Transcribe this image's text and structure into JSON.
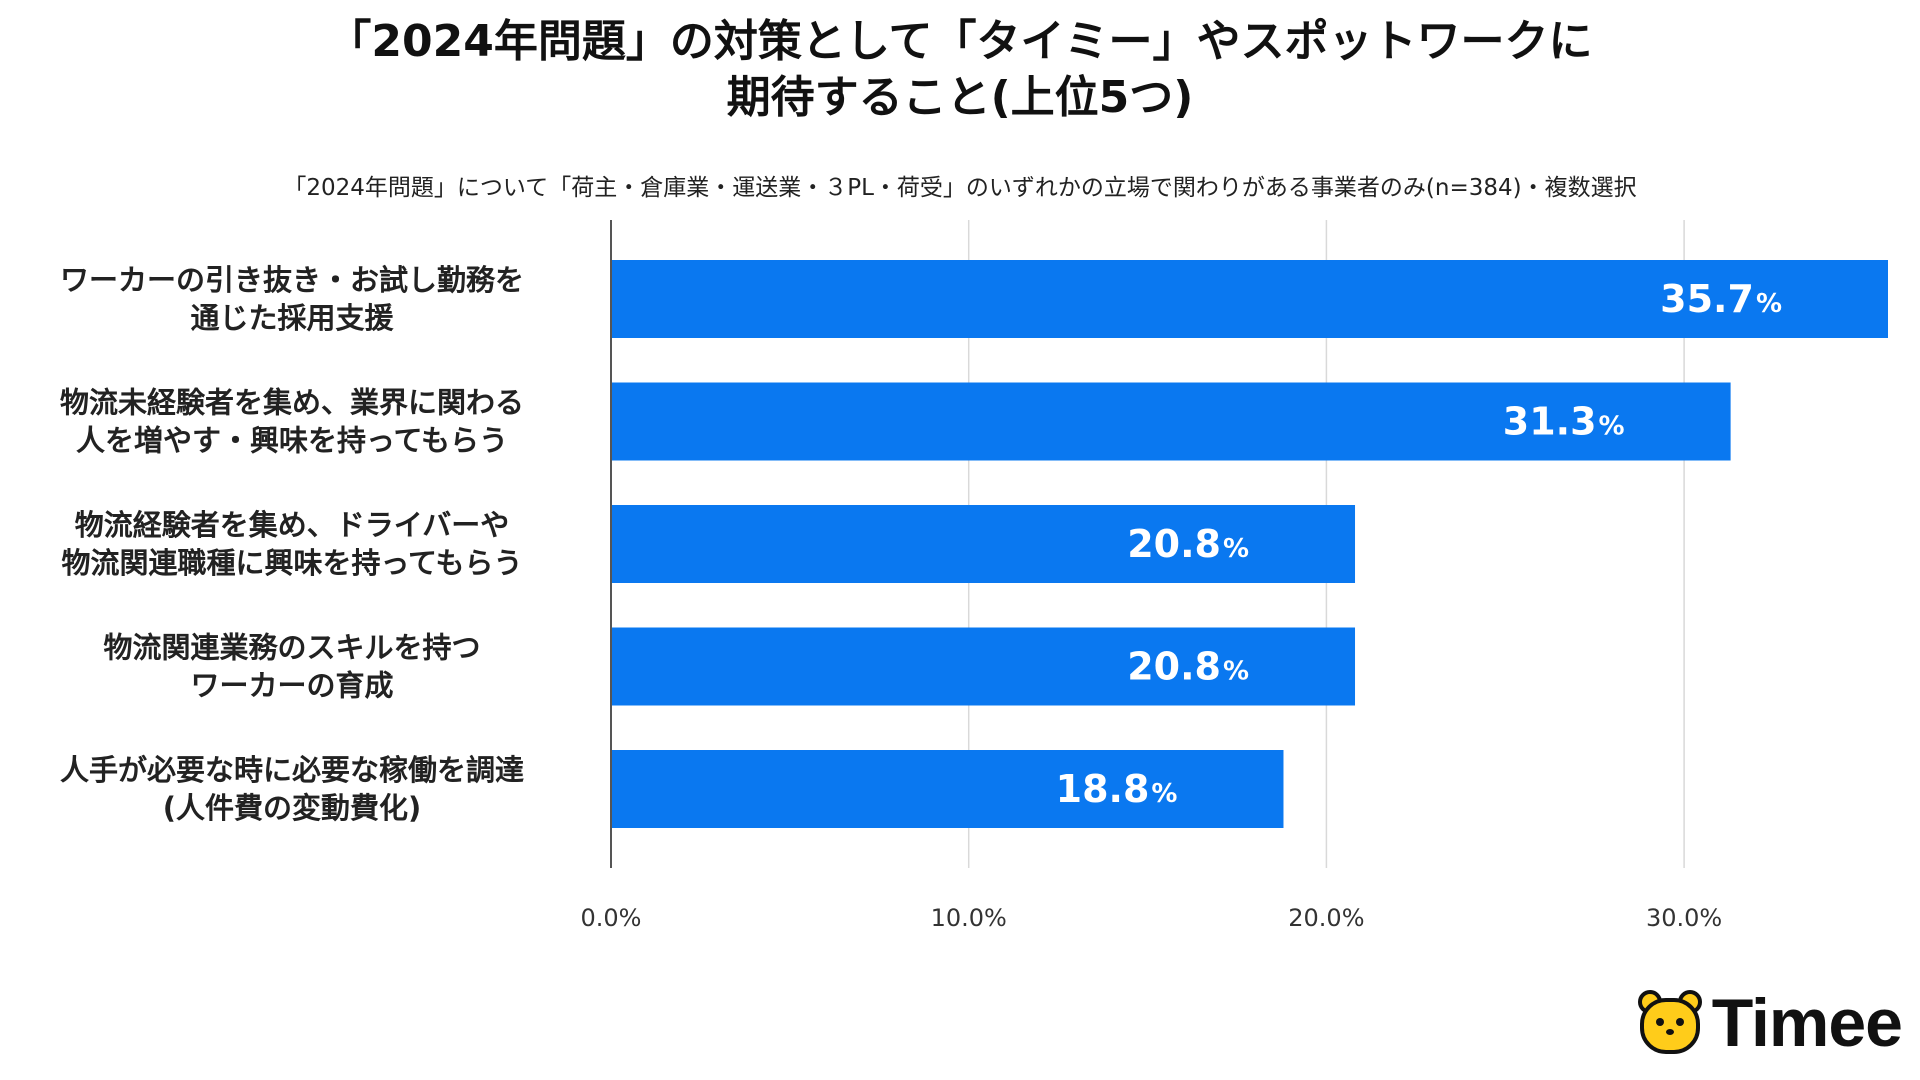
{
  "title_lines": [
    "「2024年問題」の対策として「タイミー」やスポットワークに",
    "期待すること(上位5つ)"
  ],
  "subtitle": "「2024年問題」について「荷主・倉庫業・運送業・３PL・荷受」のいずれかの立場で関わりがある事業者のみ(n=384)・複数選択",
  "logo": {
    "text": "Timee",
    "icon": "timee-bear-icon"
  },
  "colors": {
    "bar": "#0a78f0",
    "grid": "#d9d9d9",
    "axis": "#555555",
    "logo_yellow": "#ffcc1a"
  },
  "chart_data": {
    "type": "bar",
    "orientation": "horizontal",
    "title": "「2024年問題」の対策として「タイミー」やスポットワークに期待すること(上位5つ)",
    "categories": [
      [
        "ワーカーの引き抜き・お試し勤務を",
        "通じた採用支援"
      ],
      [
        "物流未経験者を集め、業界に関わる",
        "人を増やす・興味を持ってもらう"
      ],
      [
        "物流経験者を集め、ドライバーや",
        "物流関連職種に興味を持ってもらう"
      ],
      [
        "物流関連業務のスキルを持つ",
        "ワーカーの育成"
      ],
      [
        "人手が必要な時に必要な稼働を調達",
        "(人件費の変動費化)"
      ]
    ],
    "values": [
      35.7,
      31.3,
      20.8,
      20.8,
      18.8
    ],
    "value_labels": [
      "35.7",
      "31.3",
      "20.8",
      "20.8",
      "18.8"
    ],
    "value_suffix": "%",
    "x_ticks": [
      0,
      10,
      20,
      30
    ],
    "x_tick_labels": [
      "0.0%",
      "10.0%",
      "20.0%",
      "30.0%"
    ],
    "xlim": [
      0,
      35.7
    ],
    "grid": true,
    "xlabel": "",
    "ylabel": ""
  }
}
